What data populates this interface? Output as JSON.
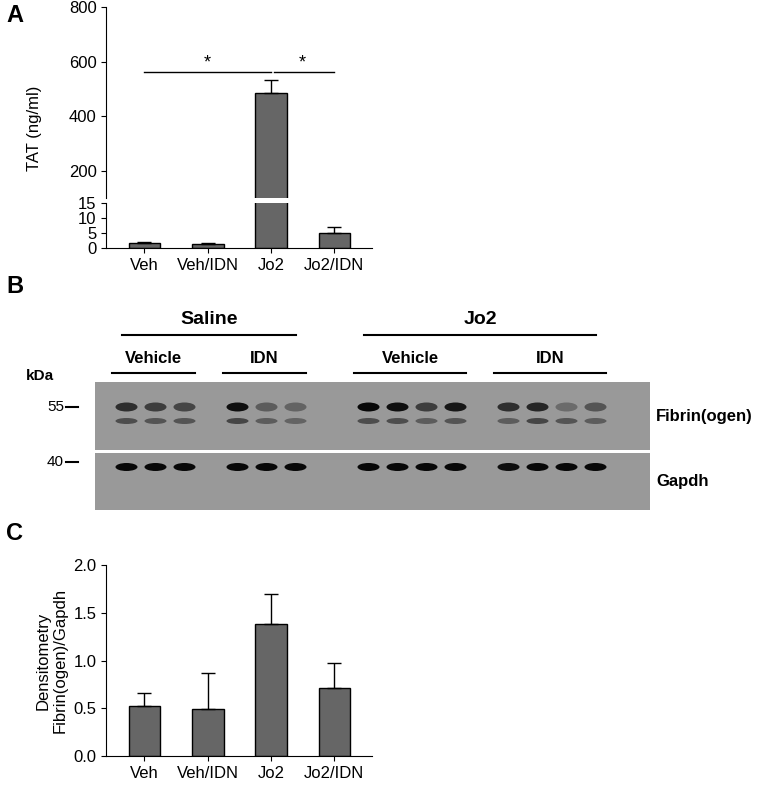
{
  "chart_data": [
    {
      "panel_label": "A",
      "type": "bar",
      "categories": [
        "Veh",
        "Veh/IDN",
        "Jo2",
        "Jo2/IDN"
      ],
      "values": [
        1.8,
        1.5,
        485,
        5.2
      ],
      "errors": [
        0.2,
        0.2,
        50,
        1.8
      ],
      "color": "#666666",
      "ylabel": "TAT (ng/ml)",
      "axis_segments": [
        {
          "ylim": [
            0,
            15
          ],
          "yticks": [
            0,
            5,
            10,
            15
          ]
        },
        {
          "ylim": [
            100,
            800
          ],
          "yticks": [
            200,
            400,
            600,
            800
          ]
        }
      ],
      "significance": [
        {
          "from": "Veh",
          "to": "Jo2",
          "label": "*"
        },
        {
          "from": "Jo2",
          "to": "Jo2/IDN",
          "label": "*"
        }
      ]
    },
    {
      "panel_label": "C",
      "type": "bar",
      "categories": [
        "Veh",
        "Veh/IDN",
        "Jo2",
        "Jo2/IDN"
      ],
      "values": [
        0.53,
        0.49,
        1.38,
        0.71
      ],
      "errors": [
        0.13,
        0.38,
        0.31,
        0.26
      ],
      "color": "#666666",
      "ylabel": "Densitometry\nFibrin(ogen)/Gapdh",
      "ylim": [
        0,
        2
      ],
      "yticks": [
        {
          "value": 0,
          "label": "0.0"
        },
        0.5,
        {
          "value": 1,
          "label": "1.0"
        },
        1.5,
        {
          "value": 2,
          "label": "2.0"
        }
      ]
    }
  ],
  "blot": {
    "panel_label": "B",
    "groups": [
      {
        "label": "Saline",
        "subgroups": [
          {
            "label": "Vehicle",
            "lanes": 3
          },
          {
            "label": "IDN",
            "lanes": 3
          }
        ]
      },
      {
        "label": "Jo2",
        "subgroups": [
          {
            "label": "Vehicle",
            "lanes": 4
          },
          {
            "label": "IDN",
            "lanes": 4
          }
        ]
      }
    ],
    "marker_unit": "kDa",
    "markers": [
      55,
      40
    ],
    "strips": [
      {
        "label": "Fibrin(ogen)",
        "bands": [
          [
            0.7,
            0.6,
            0.55,
            0.9,
            0.4,
            0.35,
            0.95,
            0.9,
            0.6,
            0.85,
            0.7,
            0.75,
            0.3,
            0.45
          ],
          [
            0.5,
            0.45,
            0.45,
            0.55,
            0.4,
            0.35,
            0.5,
            0.5,
            0.4,
            0.45,
            0.4,
            0.55,
            0.45,
            0.4
          ]
        ]
      },
      {
        "label": "Gapdh",
        "bands": [
          [
            0.95,
            0.95,
            0.95,
            0.95,
            0.95,
            0.95,
            0.95,
            0.95,
            0.95,
            0.95,
            0.9,
            0.95,
            0.95,
            0.95
          ]
        ]
      }
    ]
  }
}
